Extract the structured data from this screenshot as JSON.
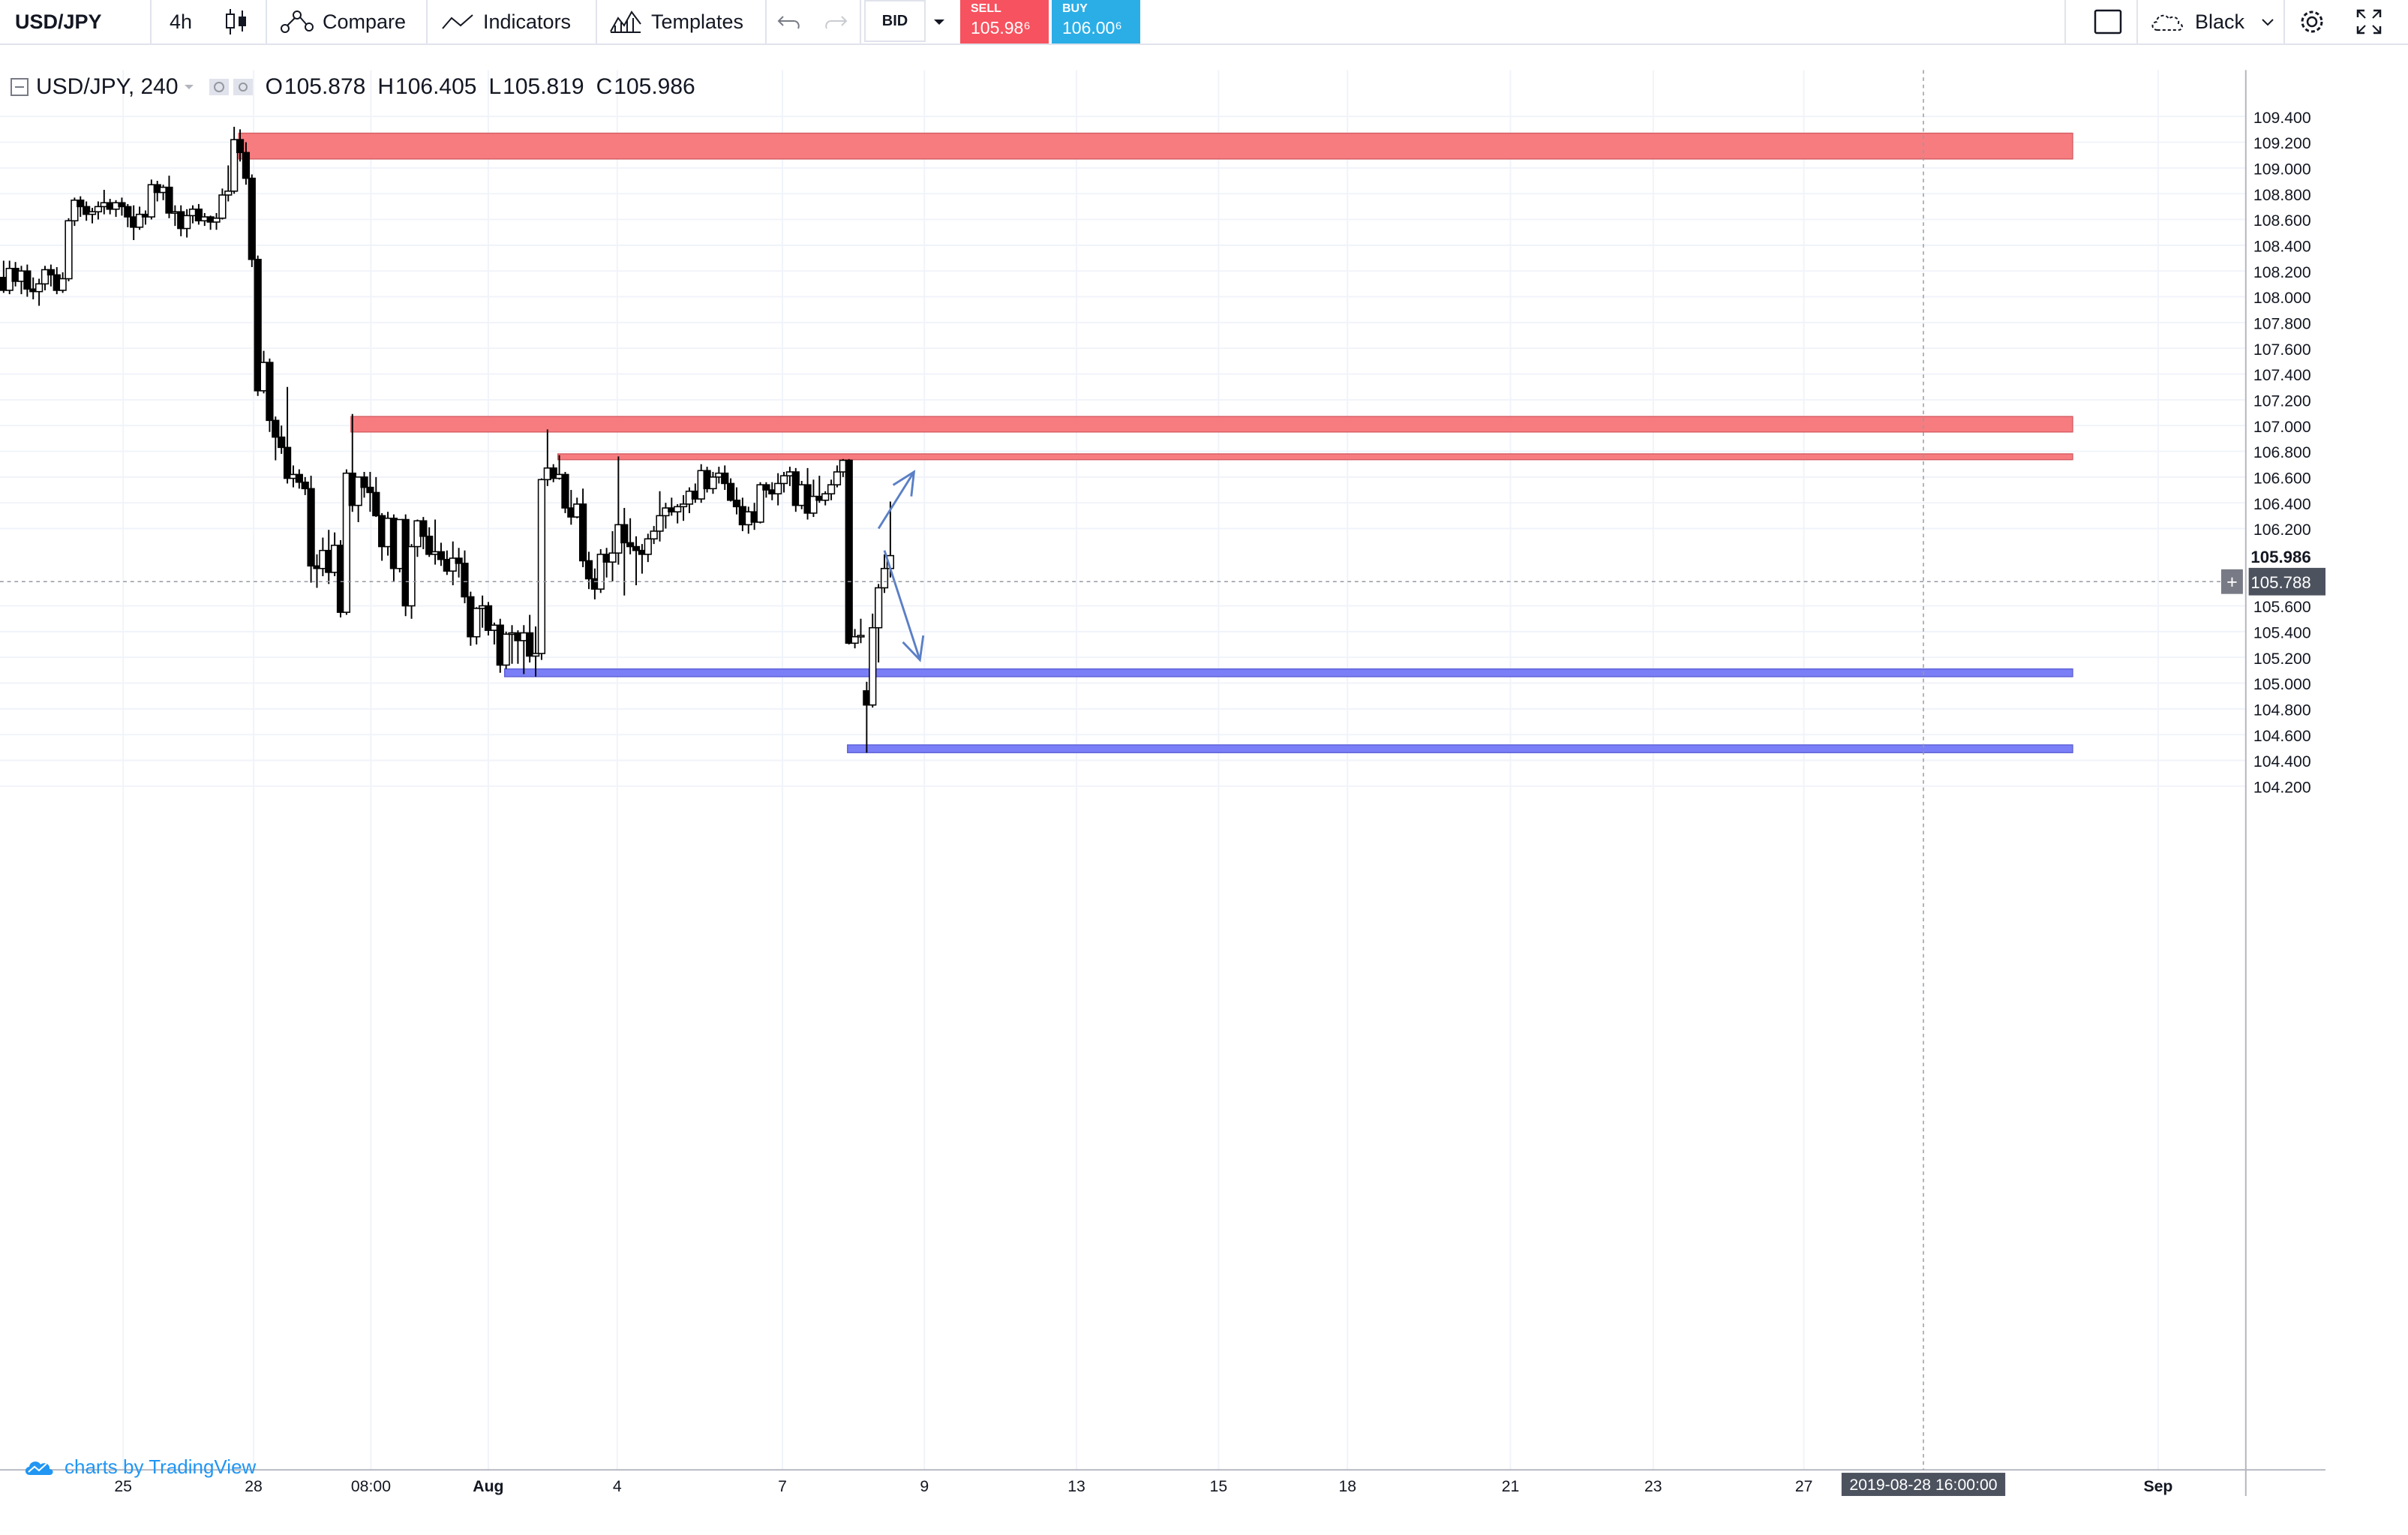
{
  "toolbar": {
    "symbol": "USD/JPY",
    "interval": "4h",
    "compare_label": "Compare",
    "indicators_label": "Indicators",
    "templates_label": "Templates",
    "price_source": "BID",
    "sell_label": "SELL",
    "sell_price": "105.98⁶",
    "buy_label": "BUY",
    "buy_price": "106.00⁶",
    "theme_label": "Black"
  },
  "legend": {
    "title": "USD/JPY, 240",
    "open_key": "O",
    "open": "105.878",
    "high_key": "H",
    "high": "106.405",
    "low_key": "L",
    "low": "105.819",
    "close_key": "C",
    "close": "105.986"
  },
  "branding": "charts by TradingView",
  "chart_data": {
    "type": "candlestick",
    "symbol": "USD/JPY",
    "interval": "240",
    "ylim": [
      104.2,
      109.5
    ],
    "y_ticks": [
      "109.400",
      "109.200",
      "109.000",
      "108.800",
      "108.600",
      "108.400",
      "108.200",
      "108.000",
      "107.800",
      "107.600",
      "107.400",
      "107.200",
      "107.000",
      "106.800",
      "106.600",
      "106.400",
      "106.200",
      "105.600",
      "105.400",
      "105.200",
      "105.000",
      "104.800",
      "104.600",
      "104.400",
      "104.200"
    ],
    "x_ticks": [
      "25",
      "28",
      "08:00",
      "Aug",
      "4",
      "7",
      "9",
      "13",
      "15",
      "18",
      "21",
      "23",
      "27",
      "Sep"
    ],
    "last_price": "105.986",
    "last_price_value": 105.986,
    "crosshair_price": "105.788",
    "crosshair_price_value": 105.788,
    "crosshair_time": "2019-08-28 16:00:00",
    "zones": [
      {
        "kind": "resistance",
        "color": "#f77c80",
        "top": 109.27,
        "bottom": 109.07,
        "start_index": 40
      },
      {
        "kind": "resistance",
        "color": "#f77c80",
        "top": 107.07,
        "bottom": 106.95,
        "start_index": 59
      },
      {
        "kind": "resistance",
        "color": "#f77c80",
        "top": 106.78,
        "bottom": 106.74,
        "start_index": 94
      },
      {
        "kind": "support",
        "color": "#7b7ff7",
        "top": 105.11,
        "bottom": 105.05,
        "start_index": 85
      },
      {
        "kind": "support",
        "color": "#7b7ff7",
        "top": 104.52,
        "bottom": 104.46,
        "start_index": 143
      }
    ],
    "arrows": [
      {
        "from": [
          148,
          106.2
        ],
        "to": [
          154,
          106.64
        ],
        "color": "#5b7fc6"
      },
      {
        "from": [
          149,
          106.03
        ],
        "to": [
          155,
          105.18
        ],
        "color": "#5b7fc6"
      }
    ],
    "candles": [
      [
        108.15,
        108.28,
        108.03,
        108.05
      ],
      [
        108.05,
        108.28,
        108.02,
        108.22
      ],
      [
        108.22,
        108.27,
        108.08,
        108.12
      ],
      [
        108.12,
        108.24,
        108.02,
        108.2
      ],
      [
        108.2,
        108.25,
        108.0,
        108.06
      ],
      [
        108.06,
        108.15,
        107.98,
        108.04
      ],
      [
        108.04,
        108.14,
        107.93,
        108.1
      ],
      [
        108.1,
        108.24,
        108.05,
        108.21
      ],
      [
        108.21,
        108.25,
        108.08,
        108.17
      ],
      [
        108.17,
        108.23,
        108.02,
        108.05
      ],
      [
        108.05,
        108.19,
        108.03,
        108.14
      ],
      [
        108.14,
        108.61,
        108.12,
        108.59
      ],
      [
        108.59,
        108.77,
        108.55,
        108.75
      ],
      [
        108.75,
        108.78,
        108.62,
        108.7
      ],
      [
        108.7,
        108.74,
        108.59,
        108.64
      ],
      [
        108.64,
        108.69,
        108.57,
        108.66
      ],
      [
        108.66,
        108.74,
        108.6,
        108.7
      ],
      [
        108.7,
        108.83,
        108.64,
        108.73
      ],
      [
        108.73,
        108.76,
        108.64,
        108.68
      ],
      [
        108.68,
        108.75,
        108.62,
        108.73
      ],
      [
        108.73,
        108.77,
        108.63,
        108.7
      ],
      [
        108.7,
        108.72,
        108.54,
        108.62
      ],
      [
        108.62,
        108.71,
        108.44,
        108.54
      ],
      [
        108.54,
        108.7,
        108.52,
        108.64
      ],
      [
        108.64,
        108.67,
        108.56,
        108.62
      ],
      [
        108.62,
        108.91,
        108.6,
        108.87
      ],
      [
        108.87,
        108.9,
        108.74,
        108.81
      ],
      [
        108.81,
        108.87,
        108.75,
        108.85
      ],
      [
        108.85,
        108.94,
        108.61,
        108.65
      ],
      [
        108.65,
        108.71,
        108.55,
        108.66
      ],
      [
        108.66,
        108.71,
        108.47,
        108.53
      ],
      [
        108.53,
        108.68,
        108.46,
        108.63
      ],
      [
        108.63,
        108.71,
        108.57,
        108.68
      ],
      [
        108.68,
        108.72,
        108.56,
        108.59
      ],
      [
        108.59,
        108.65,
        108.55,
        108.62
      ],
      [
        108.62,
        108.63,
        108.52,
        108.58
      ],
      [
        108.58,
        108.65,
        108.52,
        108.61
      ],
      [
        108.61,
        108.84,
        108.6,
        108.79
      ],
      [
        108.79,
        109.02,
        108.74,
        108.82
      ],
      [
        108.82,
        109.32,
        108.8,
        109.22
      ],
      [
        109.22,
        109.3,
        109.05,
        109.12
      ],
      [
        109.12,
        109.2,
        108.87,
        108.92
      ],
      [
        108.92,
        108.95,
        108.23,
        108.29
      ],
      [
        108.29,
        108.32,
        107.23,
        107.27
      ],
      [
        107.27,
        107.58,
        107.25,
        107.49
      ],
      [
        107.49,
        107.52,
        106.95,
        107.04
      ],
      [
        107.04,
        107.07,
        106.73,
        106.91
      ],
      [
        106.91,
        107.0,
        106.78,
        106.83
      ],
      [
        106.83,
        107.3,
        106.55,
        106.59
      ],
      [
        106.59,
        106.69,
        106.52,
        106.62
      ],
      [
        106.62,
        106.66,
        106.51,
        106.56
      ],
      [
        106.56,
        106.6,
        106.46,
        106.51
      ],
      [
        106.51,
        106.61,
        105.78,
        105.91
      ],
      [
        105.91,
        106.0,
        105.74,
        105.89
      ],
      [
        105.89,
        106.13,
        105.83,
        106.03
      ],
      [
        106.03,
        106.19,
        105.77,
        105.86
      ],
      [
        105.86,
        106.17,
        105.83,
        106.07
      ],
      [
        106.07,
        106.11,
        105.51,
        105.55
      ],
      [
        105.55,
        106.66,
        105.53,
        106.63
      ],
      [
        106.63,
        107.09,
        106.33,
        106.38
      ],
      [
        106.38,
        106.59,
        106.25,
        106.6
      ],
      [
        106.6,
        106.64,
        106.44,
        106.52
      ],
      [
        106.52,
        106.64,
        106.33,
        106.48
      ],
      [
        106.48,
        106.6,
        106.29,
        106.3
      ],
      [
        106.3,
        106.32,
        105.95,
        106.06
      ],
      [
        106.06,
        106.33,
        105.99,
        106.28
      ],
      [
        106.28,
        106.31,
        105.79,
        105.89
      ],
      [
        105.89,
        106.23,
        105.86,
        106.27
      ],
      [
        106.27,
        106.31,
        105.52,
        105.6
      ],
      [
        105.6,
        106.08,
        105.5,
        106.06
      ],
      [
        106.06,
        106.27,
        105.98,
        106.26
      ],
      [
        106.26,
        106.29,
        106.04,
        106.14
      ],
      [
        106.14,
        106.21,
        105.98,
        106.0
      ],
      [
        106.0,
        106.27,
        105.92,
        106.02
      ],
      [
        106.02,
        106.09,
        105.91,
        105.96
      ],
      [
        105.96,
        106.03,
        105.84,
        105.87
      ],
      [
        105.87,
        106.1,
        105.76,
        105.97
      ],
      [
        105.97,
        106.05,
        105.82,
        105.93
      ],
      [
        105.93,
        106.03,
        105.62,
        105.67
      ],
      [
        105.67,
        105.71,
        105.29,
        105.36
      ],
      [
        105.36,
        105.59,
        105.3,
        105.58
      ],
      [
        105.58,
        105.68,
        105.43,
        105.6
      ],
      [
        105.6,
        105.63,
        105.37,
        105.41
      ],
      [
        105.41,
        105.47,
        105.3,
        105.45
      ],
      [
        105.45,
        105.5,
        105.08,
        105.14
      ],
      [
        105.14,
        105.4,
        105.11,
        105.38
      ],
      [
        105.38,
        105.45,
        105.15,
        105.39
      ],
      [
        105.39,
        105.41,
        105.15,
        105.33
      ],
      [
        105.33,
        105.45,
        105.07,
        105.39
      ],
      [
        105.39,
        105.53,
        105.16,
        105.21
      ],
      [
        105.21,
        105.44,
        105.05,
        105.23
      ],
      [
        105.23,
        106.59,
        105.18,
        106.58
      ],
      [
        106.58,
        106.97,
        106.53,
        106.67
      ],
      [
        106.67,
        106.7,
        106.56,
        106.59
      ],
      [
        106.59,
        106.77,
        106.58,
        106.62
      ],
      [
        106.62,
        106.64,
        106.32,
        106.36
      ],
      [
        106.36,
        106.5,
        106.23,
        106.29
      ],
      [
        106.29,
        106.44,
        106.28,
        106.39
      ],
      [
        106.39,
        106.51,
        105.9,
        105.95
      ],
      [
        105.95,
        106.02,
        105.73,
        105.81
      ],
      [
        105.81,
        105.89,
        105.65,
        105.73
      ],
      [
        105.73,
        106.04,
        105.7,
        106.0
      ],
      [
        106.0,
        106.05,
        105.82,
        105.94
      ],
      [
        105.94,
        106.18,
        105.79,
        106.01
      ],
      [
        106.01,
        106.76,
        105.92,
        106.23
      ],
      [
        106.23,
        106.36,
        105.68,
        106.09
      ],
      [
        106.09,
        106.28,
        106.0,
        106.06
      ],
      [
        106.06,
        106.14,
        105.76,
        106.03
      ],
      [
        106.03,
        106.08,
        105.85,
        106.0
      ],
      [
        106.0,
        106.16,
        105.94,
        106.12
      ],
      [
        106.12,
        106.22,
        106.08,
        106.18
      ],
      [
        106.18,
        106.49,
        106.1,
        106.3
      ],
      [
        106.3,
        106.4,
        106.2,
        106.36
      ],
      [
        106.36,
        106.44,
        106.3,
        106.33
      ],
      [
        106.33,
        106.39,
        106.24,
        106.37
      ],
      [
        106.37,
        106.46,
        106.26,
        106.39
      ],
      [
        106.39,
        106.52,
        106.32,
        106.49
      ],
      [
        106.49,
        106.55,
        106.4,
        106.43
      ],
      [
        106.43,
        106.7,
        106.4,
        106.65
      ],
      [
        106.65,
        106.68,
        106.48,
        106.51
      ],
      [
        106.51,
        106.64,
        106.47,
        106.6
      ],
      [
        106.6,
        106.68,
        106.55,
        106.63
      ],
      [
        106.63,
        106.69,
        106.5,
        106.55
      ],
      [
        106.55,
        106.59,
        106.41,
        106.42
      ],
      [
        106.42,
        106.52,
        106.31,
        106.37
      ],
      [
        106.37,
        106.44,
        106.18,
        106.23
      ],
      [
        106.23,
        106.37,
        106.16,
        106.33
      ],
      [
        106.33,
        106.4,
        106.19,
        106.25
      ],
      [
        106.25,
        106.56,
        106.24,
        106.54
      ],
      [
        106.54,
        106.56,
        106.44,
        106.5
      ],
      [
        106.5,
        106.56,
        106.42,
        106.47
      ],
      [
        106.47,
        106.63,
        106.38,
        106.55
      ],
      [
        106.55,
        106.64,
        106.48,
        106.61
      ],
      [
        106.61,
        106.68,
        106.53,
        106.64
      ],
      [
        106.64,
        106.67,
        106.33,
        106.38
      ],
      [
        106.38,
        106.57,
        106.35,
        106.54
      ],
      [
        106.54,
        106.67,
        106.27,
        106.32
      ],
      [
        106.32,
        106.58,
        106.29,
        106.45
      ],
      [
        106.45,
        106.61,
        106.4,
        106.42
      ],
      [
        106.42,
        106.49,
        106.38,
        106.47
      ],
      [
        106.47,
        106.58,
        106.42,
        106.54
      ],
      [
        106.54,
        106.69,
        106.52,
        106.64
      ],
      [
        106.64,
        106.74,
        106.6,
        106.73
      ],
      [
        106.73,
        106.74,
        105.3,
        105.31
      ],
      [
        105.31,
        105.42,
        105.27,
        105.36
      ],
      [
        105.36,
        105.5,
        105.31,
        105.37
      ],
      [
        104.94,
        105.01,
        104.46,
        104.83
      ],
      [
        104.83,
        105.54,
        104.81,
        105.43
      ],
      [
        105.43,
        105.77,
        105.16,
        105.74
      ],
      [
        105.74,
        106.0,
        105.7,
        105.89
      ],
      [
        105.89,
        106.41,
        105.82,
        105.99
      ]
    ]
  }
}
